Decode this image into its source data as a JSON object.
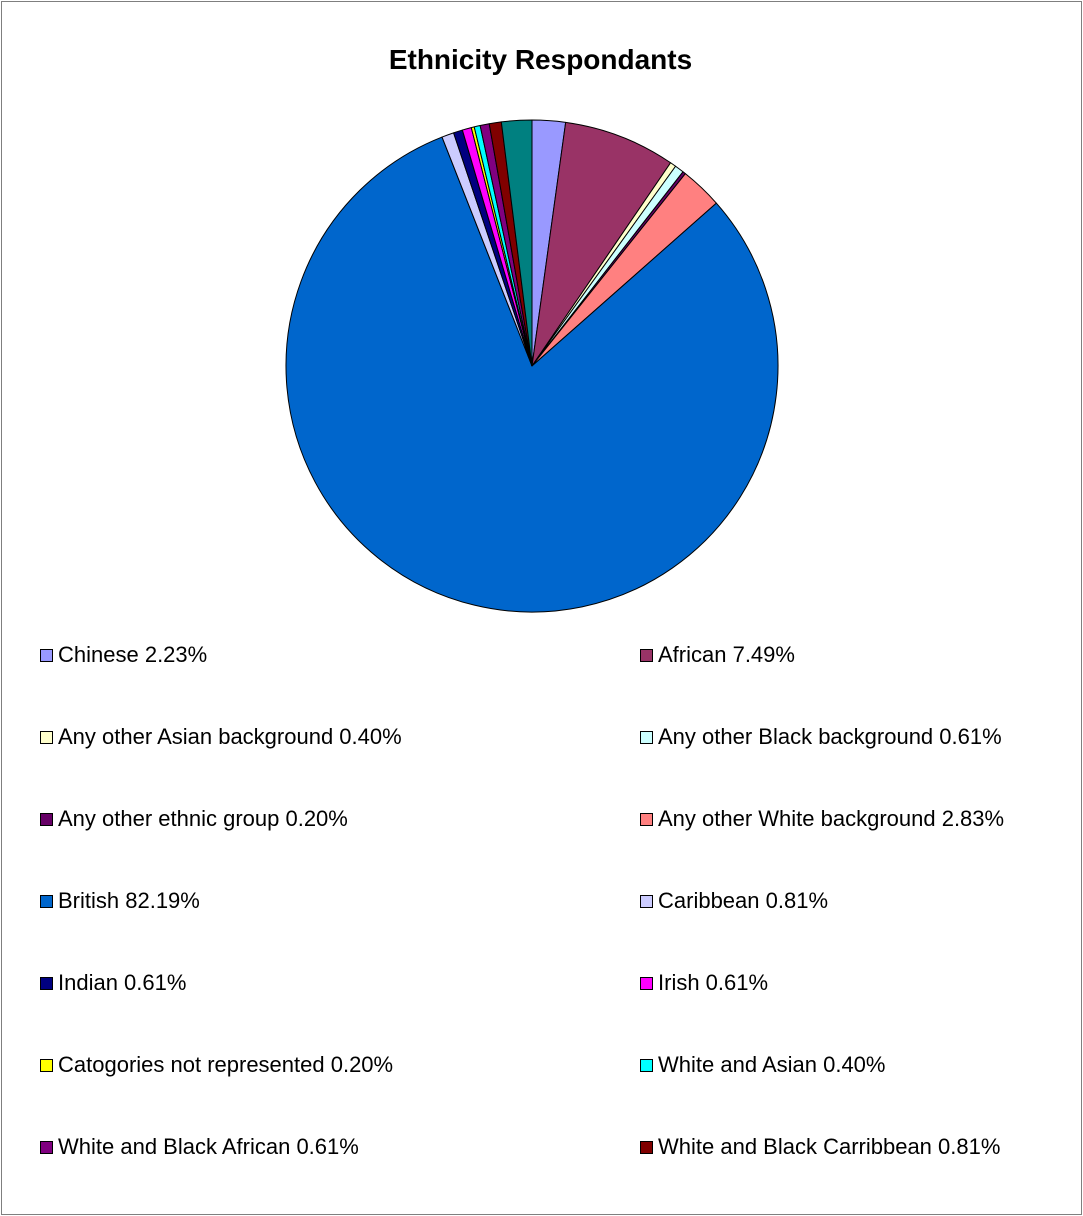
{
  "chart_data": {
    "type": "pie",
    "title": "Ethnicity Respondants",
    "legend_position": "bottom",
    "slices": [
      {
        "label": "Chinese",
        "value": 2.23,
        "display": "Chinese 2.23%",
        "color": "#9999ff"
      },
      {
        "label": "African",
        "value": 7.49,
        "display": "African 7.49%",
        "color": "#993366"
      },
      {
        "label": "Any other Asian background",
        "value": 0.4,
        "display": "Any other Asian background 0.40%",
        "color": "#ffffcc"
      },
      {
        "label": "Any other Black background",
        "value": 0.61,
        "display": "Any other Black background 0.61%",
        "color": "#ccffff"
      },
      {
        "label": "Any other ethnic group",
        "value": 0.2,
        "display": "Any other ethnic group 0.20%",
        "color": "#660066"
      },
      {
        "label": "Any other White background",
        "value": 2.83,
        "display": "Any other White background 2.83%",
        "color": "#ff8080"
      },
      {
        "label": "British",
        "value": 82.19,
        "display": "British 82.19%",
        "color": "#0066cc"
      },
      {
        "label": "Caribbean",
        "value": 0.81,
        "display": "Caribbean 0.81%",
        "color": "#ccccff"
      },
      {
        "label": "Indian",
        "value": 0.61,
        "display": "Indian 0.61%",
        "color": "#000080"
      },
      {
        "label": "Irish",
        "value": 0.61,
        "display": "Irish 0.61%",
        "color": "#ff00ff"
      },
      {
        "label": "Catogories not represented",
        "value": 0.2,
        "display": "Catogories not represented 0.20%",
        "color": "#ffff00"
      },
      {
        "label": "White and Asian",
        "value": 0.4,
        "display": "White and Asian 0.40%",
        "color": "#00ffff"
      },
      {
        "label": "White and Black African",
        "value": 0.61,
        "display": "White and Black African 0.61%",
        "color": "#800080"
      },
      {
        "label": "White and Black Carribbean",
        "value": 0.81,
        "display": "White and Black Carribbean 0.81%",
        "color": "#800000"
      },
      {
        "label": "",
        "value": 2.03,
        "display": "",
        "color": "#008080"
      }
    ]
  }
}
